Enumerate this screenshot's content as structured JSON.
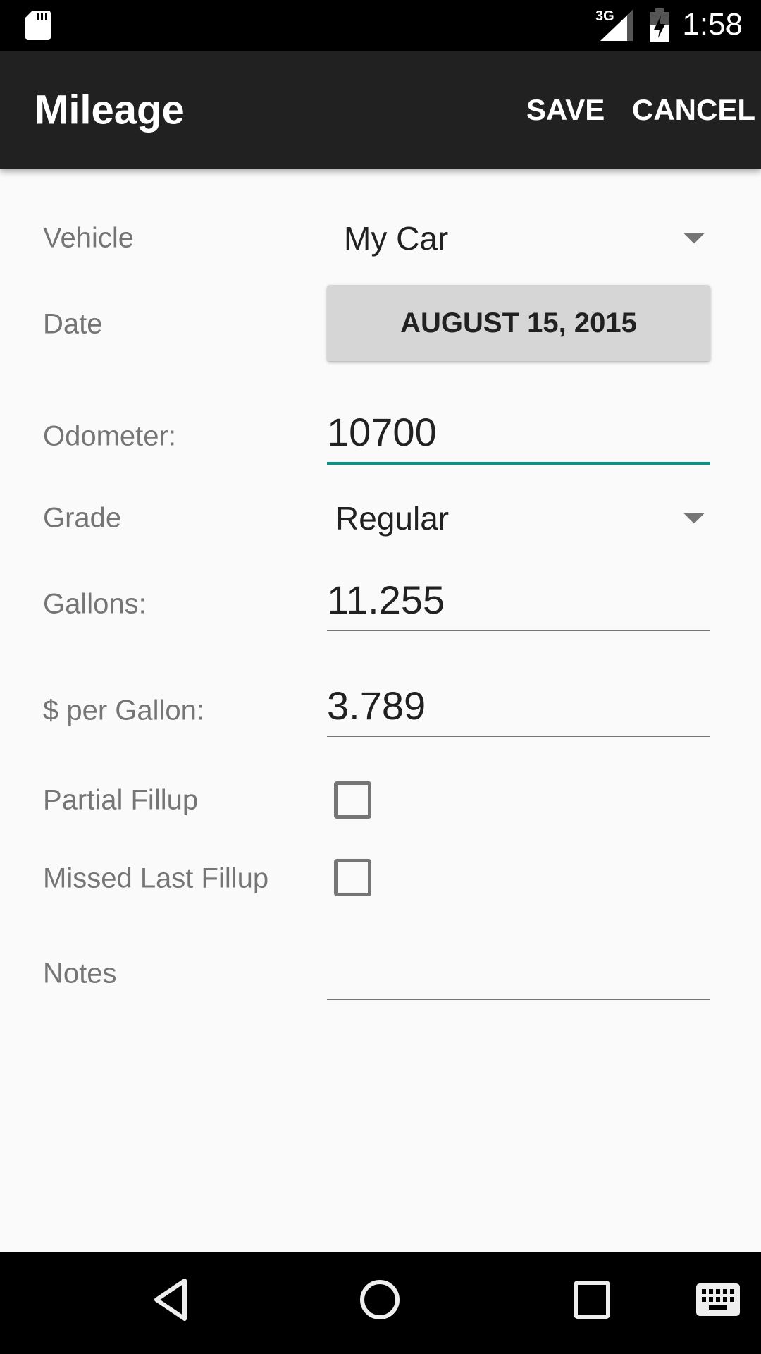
{
  "status_bar": {
    "time": "1:58",
    "network": "3G",
    "icons": [
      "sd-card-icon",
      "signal-icon",
      "battery-charging-icon"
    ]
  },
  "app_bar": {
    "title": "Mileage",
    "save_label": "SAVE",
    "cancel_label": "CANCEL"
  },
  "form": {
    "vehicle": {
      "label": "Vehicle",
      "value": "My Car"
    },
    "date": {
      "label": "Date",
      "value": "AUGUST 15, 2015"
    },
    "odometer": {
      "label": "Odometer:",
      "value": "10700"
    },
    "grade": {
      "label": "Grade",
      "value": "Regular"
    },
    "gallons": {
      "label": "Gallons:",
      "value": "11.255"
    },
    "price": {
      "label": "$ per Gallon:",
      "value": "3.789"
    },
    "partial": {
      "label": "Partial Fillup",
      "checked": false
    },
    "missed": {
      "label": "Missed Last Fillup",
      "checked": false
    },
    "notes": {
      "label": "Notes",
      "value": ""
    }
  },
  "colors": {
    "accent": "#009688",
    "app_bar": "#212121"
  },
  "nav_bar": {
    "icons": [
      "back-icon",
      "home-icon",
      "recents-icon",
      "keyboard-icon"
    ]
  }
}
